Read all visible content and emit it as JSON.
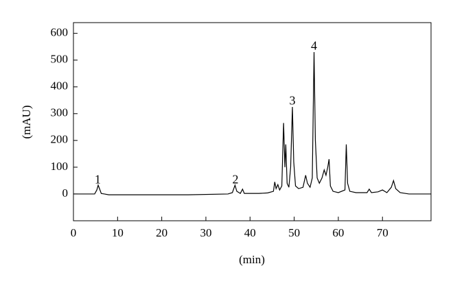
{
  "chart_data": {
    "type": "line",
    "x_label": "(min)",
    "y_label": "(mAU)",
    "xlim": [
      0,
      81
    ],
    "ylim": [
      -100,
      640
    ],
    "xticks": [
      0,
      10,
      20,
      30,
      40,
      50,
      60,
      70
    ],
    "yticks": [
      0,
      100,
      200,
      300,
      400,
      500,
      600
    ],
    "grid": false,
    "series": [
      {
        "color": "#000000",
        "x": [
          0,
          4.8,
          5.3,
          5.6,
          5.9,
          6.3,
          7,
          8,
          26,
          35,
          36,
          36.6,
          37,
          37.8,
          38.3,
          38.7,
          42,
          44,
          45.3,
          45.6,
          45.9,
          46.3,
          46.7,
          47.2,
          47.6,
          47.9,
          48.1,
          48.4,
          48.8,
          49.2,
          49.6,
          49.9,
          50.3,
          51,
          52,
          52.6,
          53,
          53.6,
          54.1,
          54.5,
          54.8,
          55.2,
          55.7,
          56.3,
          56.8,
          57.2,
          57.6,
          57.9,
          58.2,
          58.8,
          60,
          61.5,
          61.8,
          62.1,
          62.6,
          64,
          66.5,
          67,
          67.5,
          69,
          70,
          71,
          72,
          72.5,
          73,
          74,
          76,
          81
        ],
        "values": [
          0,
          0,
          15,
          33,
          20,
          2,
          0,
          -3,
          -3,
          0,
          5,
          33,
          10,
          2,
          18,
          2,
          2,
          4,
          10,
          45,
          20,
          35,
          15,
          30,
          265,
          100,
          185,
          40,
          25,
          100,
          325,
          120,
          30,
          20,
          25,
          70,
          40,
          25,
          60,
          530,
          200,
          60,
          40,
          60,
          90,
          70,
          100,
          130,
          30,
          10,
          5,
          15,
          185,
          40,
          10,
          5,
          5,
          18,
          5,
          8,
          15,
          5,
          25,
          50,
          20,
          5,
          0,
          0
        ]
      }
    ],
    "annotations": [
      {
        "text": "1",
        "x": 5.5,
        "y": 50
      },
      {
        "text": "2",
        "x": 36.7,
        "y": 50
      },
      {
        "text": "3",
        "x": 49.6,
        "y": 345
      },
      {
        "text": "4",
        "x": 54.5,
        "y": 550
      }
    ]
  }
}
